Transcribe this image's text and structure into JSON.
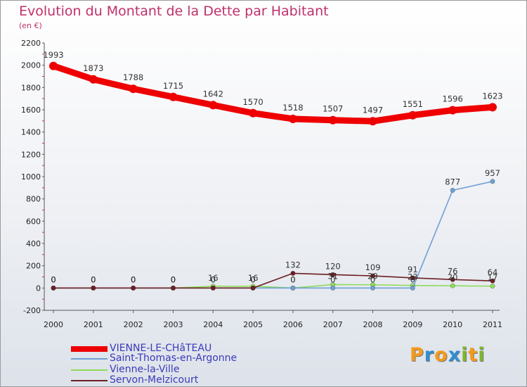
{
  "title": "Evolution du Montant de la Dette par Habitant",
  "subtitle": "(en €)",
  "logo": {
    "text": "Proxiti",
    "letters": [
      {
        "char": "P",
        "color": "#f39a1c"
      },
      {
        "char": "r",
        "color": "#2f8fd0"
      },
      {
        "char": "o",
        "color": "#f39a1c"
      },
      {
        "char": "x",
        "color": "#2f8fd0"
      },
      {
        "char": "i",
        "color": "#7ab82a"
      },
      {
        "char": "t",
        "color": "#f39a1c"
      },
      {
        "char": "i",
        "color": "#7ab82a"
      }
    ]
  },
  "chart_data": {
    "type": "line",
    "title": "Evolution du Montant de la Dette par Habitant",
    "subtitle": "(en €)",
    "x": [
      "2000",
      "2001",
      "2002",
      "2003",
      "2004",
      "2005",
      "2006",
      "2007",
      "2008",
      "2009",
      "2010",
      "2011"
    ],
    "ylim": [
      -200,
      2200
    ],
    "yticks": [
      -200,
      0,
      200,
      400,
      600,
      800,
      1000,
      1200,
      1400,
      1600,
      1800,
      2000,
      2200
    ],
    "grid": false,
    "legend_position": "bottom-left",
    "series": [
      {
        "name": "VIENNE-LE-CHâTEAU",
        "color": "#ee0000",
        "values": [
          1993,
          1873,
          1788,
          1715,
          1642,
          1570,
          1518,
          1507,
          1497,
          1551,
          1596,
          1623
        ],
        "labels": [
          "1993",
          "1873",
          "1788",
          "1715",
          "1642",
          "1570",
          "1518",
          "1507",
          "1497",
          "1551",
          "1596",
          "1623"
        ]
      },
      {
        "name": "Saint-Thomas-en-Argonne",
        "color": "#6fa0d6",
        "values": [
          0,
          0,
          0,
          0,
          0,
          0,
          0,
          0,
          0,
          0,
          877,
          957
        ],
        "labels": [
          "0",
          "0",
          "0",
          "0",
          "0",
          "0",
          "0",
          "0",
          "0",
          "0",
          "877",
          "957"
        ]
      },
      {
        "name": "Vienne-la-Ville",
        "color": "#8fdc5a",
        "values": [
          0,
          0,
          0,
          0,
          16,
          16,
          0,
          31,
          29,
          23,
          20,
          17
        ],
        "labels": [
          "0",
          "0",
          "0",
          "0",
          "16",
          "16",
          "0",
          "31",
          "29",
          "23",
          "20",
          "17"
        ]
      },
      {
        "name": "Servon-Melzicourt",
        "color": "#6b1f24",
        "values": [
          0,
          0,
          0,
          0,
          0,
          0,
          132,
          120,
          109,
          91,
          76,
          64
        ],
        "labels": [
          "0",
          "0",
          "0",
          "0",
          "0",
          "0",
          "132",
          "120",
          "109",
          "91",
          "76",
          "64"
        ]
      }
    ]
  }
}
